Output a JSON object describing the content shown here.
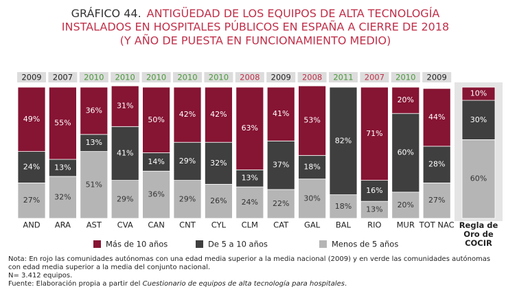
{
  "chart_data": {
    "type": "stacked_bar",
    "title_prefix": "GRÁFICO 44.",
    "title_lines": [
      "ANTIGÜEDAD DE LOS EQUIPOS DE ALTA TECNOLOGÍA",
      "INSTALADOS EN HOSPITALES PÚBLICOS EN ESPAÑA A CIERRE DE 2018",
      "(Y AÑO DE PUESTA EN FUNCIONAMIENTO MEDIO)"
    ],
    "categories": [
      "AND",
      "ARA",
      "AST",
      "CVA",
      "CAN",
      "CNT",
      "CYL",
      "CLM",
      "CAT",
      "GAL",
      "BAL",
      "RIO",
      "MUR",
      "TOT NAC",
      "Regla de Oro de COCIR"
    ],
    "year_labels": [
      "2009",
      "2007",
      "2010",
      "2010",
      "2010",
      "2010",
      "2010",
      "2008",
      "2009",
      "2008",
      "2011",
      "2007",
      "2010",
      "2009",
      null
    ],
    "year_colors": [
      "#222222",
      "#222222",
      "#4a9a3a",
      "#4a9a3a",
      "#4a9a3a",
      "#4a9a3a",
      "#4a9a3a",
      "#c0304a",
      "#222222",
      "#c0304a",
      "#4a9a3a",
      "#c0304a",
      "#4a9a3a",
      "#222222",
      null
    ],
    "ylim": [
      0,
      100
    ],
    "series": [
      {
        "name": "Más de 10 años",
        "color": "#861433",
        "values": [
          49,
          55,
          36,
          31,
          50,
          42,
          42,
          63,
          41,
          53,
          0,
          71,
          20,
          44,
          10
        ],
        "value_labels": [
          "49%",
          "55%",
          "36%",
          "31%",
          "50%",
          "42%",
          "42%",
          "63%",
          "41%",
          "53%",
          null,
          "71%",
          "20%",
          "44%",
          "10%"
        ]
      },
      {
        "name": "De 5 a 10 años",
        "color": "#3f3f3f",
        "values": [
          24,
          13,
          13,
          41,
          14,
          29,
          32,
          13,
          37,
          18,
          82,
          16,
          60,
          28,
          30
        ],
        "value_labels": [
          "24%",
          "13%",
          "13%",
          "41%",
          "14%",
          "29%",
          "32%",
          "13%",
          "37%",
          "18%",
          "82%",
          "16%",
          "60%",
          "28%",
          "30%"
        ]
      },
      {
        "name": "Menos de 5 años",
        "color": "#b5b5b5",
        "values": [
          27,
          32,
          51,
          29,
          36,
          29,
          26,
          24,
          22,
          30,
          18,
          13,
          20,
          27,
          60
        ],
        "value_labels": [
          "27%",
          "32%",
          "51%",
          "29%",
          "36%",
          "29%",
          "26%",
          "24%",
          "22%",
          "30%",
          "18%",
          "13%",
          "20%",
          "27%",
          "60%"
        ]
      }
    ],
    "notes": [
      "Nota: En rojo las comunidades autónomas con una edad media superior a la media nacional (2009) y en verde las comunidades autónomas con edad media superior a la media del conjunto nacional.",
      "N= 3.412 equipos."
    ],
    "source_prefix": "Fuente: Elaboración propia a partir del ",
    "source_italic": "Cuestionario de equipos de alta tecnología para hospitales",
    "source_suffix": "."
  }
}
